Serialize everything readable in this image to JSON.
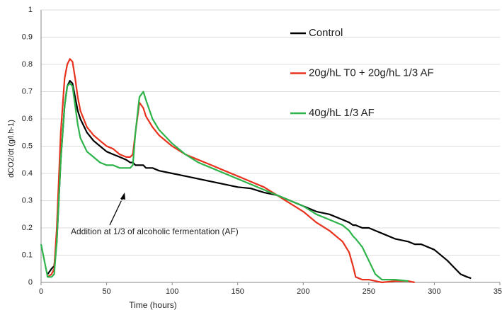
{
  "chart_data": {
    "type": "line",
    "xlabel": "Time (hours)",
    "ylabel": "dCO2/dt (g/l.h-1)",
    "annotation": "Addition at 1/3 of alcoholic fermentation (AF)",
    "x": [
      0,
      5,
      8,
      10,
      12,
      15,
      18,
      20,
      22,
      24,
      26,
      28,
      30,
      35,
      40,
      45,
      50,
      55,
      60,
      65,
      68,
      70,
      72,
      75,
      78,
      80,
      85,
      90,
      100,
      110,
      120,
      130,
      140,
      150,
      160,
      170,
      180,
      190,
      200,
      210,
      220,
      230,
      235,
      238,
      240,
      245,
      250,
      255,
      260,
      270,
      280,
      285,
      290,
      300,
      310,
      320,
      325,
      328
    ],
    "series": [
      {
        "name": "Control",
        "color": "#000000",
        "values": [
          null,
          0.03,
          0.05,
          0.06,
          0.15,
          0.45,
          0.65,
          0.72,
          0.74,
          0.73,
          0.68,
          0.63,
          0.6,
          0.55,
          0.52,
          0.5,
          0.48,
          0.47,
          0.46,
          0.45,
          0.44,
          0.44,
          0.43,
          0.43,
          0.43,
          0.42,
          0.42,
          0.41,
          0.4,
          0.39,
          0.38,
          0.37,
          0.36,
          0.35,
          0.345,
          0.33,
          0.32,
          0.3,
          0.28,
          0.26,
          0.25,
          0.23,
          0.22,
          0.21,
          0.21,
          0.2,
          0.2,
          0.19,
          0.18,
          0.16,
          0.15,
          0.14,
          0.14,
          0.12,
          0.08,
          0.03,
          0.02,
          0.015
        ]
      },
      {
        "name": "20g/hL T0 + 20g/hL 1/3 AF",
        "color": "#e8321e",
        "values": [
          null,
          0.02,
          0.03,
          0.05,
          0.2,
          0.55,
          0.75,
          0.8,
          0.82,
          0.81,
          0.75,
          0.68,
          0.63,
          0.57,
          0.54,
          0.52,
          0.5,
          0.49,
          0.47,
          0.46,
          0.46,
          0.47,
          0.55,
          0.66,
          0.64,
          0.61,
          0.57,
          0.54,
          0.5,
          0.47,
          0.45,
          0.43,
          0.41,
          0.39,
          0.37,
          0.35,
          0.32,
          0.29,
          0.26,
          0.22,
          0.19,
          0.15,
          0.11,
          0.06,
          0.02,
          0.01,
          0.01,
          0.005,
          0,
          0.005,
          0.005,
          0,
          null,
          null,
          null,
          null,
          null,
          null
        ]
      },
      {
        "name": "40g/hL 1/3 AF",
        "color": "#2db34a",
        "values": [
          0.14,
          0.02,
          0.02,
          0.03,
          0.15,
          0.45,
          0.65,
          0.72,
          0.73,
          0.72,
          0.65,
          0.58,
          0.53,
          0.48,
          0.46,
          0.44,
          0.43,
          0.43,
          0.42,
          0.42,
          0.42,
          0.43,
          0.55,
          0.68,
          0.7,
          0.67,
          0.6,
          0.56,
          0.51,
          0.47,
          0.44,
          0.42,
          0.4,
          0.38,
          0.36,
          0.34,
          0.32,
          0.3,
          0.28,
          0.25,
          0.23,
          0.21,
          0.19,
          0.17,
          0.16,
          0.13,
          0.08,
          0.03,
          0.01,
          0.01,
          0.005,
          null,
          null,
          null,
          null,
          null,
          null,
          null
        ]
      }
    ],
    "xlim": [
      0,
      350
    ],
    "xticks": [
      0,
      50,
      100,
      150,
      200,
      250,
      300,
      350
    ],
    "ylim": [
      0,
      1
    ],
    "yticks": [
      0,
      0.1,
      0.2,
      0.3,
      0.4,
      0.5,
      0.6,
      0.7,
      0.8,
      0.9,
      1
    ],
    "grid": true,
    "legend": "upper right"
  }
}
